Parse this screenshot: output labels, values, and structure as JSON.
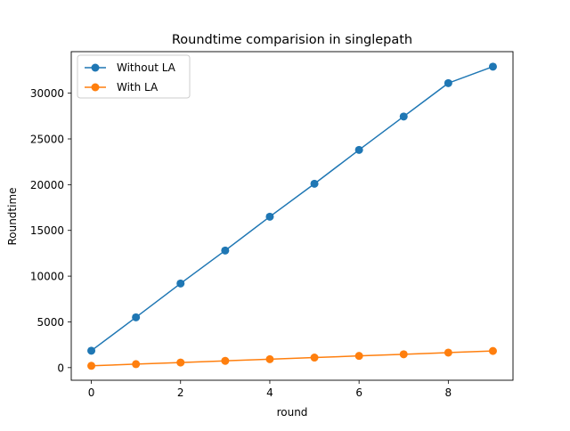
{
  "chart_data": {
    "type": "line",
    "title": "Roundtime comparision in singlepath",
    "xlabel": "round",
    "ylabel": "Roundtime",
    "x": [
      0,
      1,
      2,
      3,
      4,
      5,
      6,
      7,
      8,
      9
    ],
    "xlim": [
      -0.45,
      9.45
    ],
    "ylim": [
      -1380,
      34540
    ],
    "xticks": [
      0,
      2,
      4,
      6,
      8
    ],
    "yticks": [
      0,
      5000,
      10000,
      15000,
      20000,
      25000,
      30000
    ],
    "grid": false,
    "legend_position": "upper left",
    "series": [
      {
        "name": "Without LA",
        "color": "#1f77b4",
        "marker": "circle",
        "values": [
          1850,
          5500,
          9200,
          12800,
          16500,
          20100,
          23800,
          27450,
          31100,
          32900
        ]
      },
      {
        "name": "With LA",
        "color": "#ff7f0e",
        "marker": "circle",
        "values": [
          200,
          380,
          560,
          740,
          920,
          1100,
          1280,
          1460,
          1640,
          1820
        ]
      }
    ]
  }
}
